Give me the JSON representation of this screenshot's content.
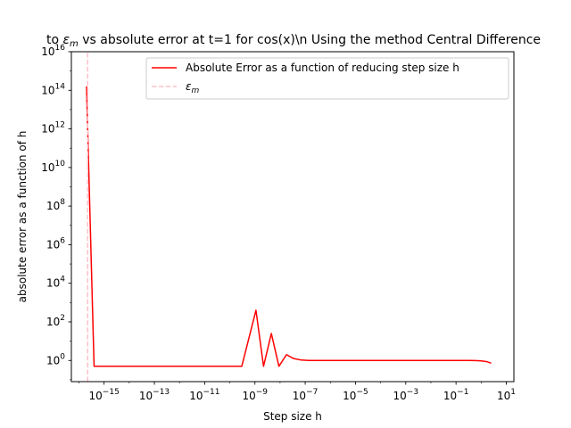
{
  "chart_data": {
    "type": "line",
    "title_prefix": "to ",
    "title_symbol": "ε",
    "title_symbol_sub": "m",
    "title_suffix": " vs absolute error at t=1 for cos(x)\\n Using the method Central Difference",
    "xlabel": "Step size h",
    "ylabel": "absolute error as a function of h",
    "xscale": "log",
    "yscale": "log",
    "xlim": [
      5e-17,
      20
    ],
    "ylim": [
      0.08,
      1e+16
    ],
    "grid": false,
    "legend_position": "top-right",
    "x_ticks": [
      {
        "value": 1e-15,
        "label": "10",
        "exp": "−15"
      },
      {
        "value": 1e-13,
        "label": "10",
        "exp": "−13"
      },
      {
        "value": 1e-11,
        "label": "10",
        "exp": "−11"
      },
      {
        "value": 1e-09,
        "label": "10",
        "exp": "−9"
      },
      {
        "value": 1e-07,
        "label": "10",
        "exp": "−7"
      },
      {
        "value": 1e-05,
        "label": "10",
        "exp": "−5"
      },
      {
        "value": 0.001,
        "label": "10",
        "exp": "−3"
      },
      {
        "value": 0.1,
        "label": "10",
        "exp": "−1"
      },
      {
        "value": 10,
        "label": "10",
        "exp": "1"
      }
    ],
    "y_ticks": [
      {
        "value": 1,
        "label": "10",
        "exp": "0"
      },
      {
        "value": 100.0,
        "label": "10",
        "exp": "2"
      },
      {
        "value": 10000.0,
        "label": "10",
        "exp": "4"
      },
      {
        "value": 1000000.0,
        "label": "10",
        "exp": "6"
      },
      {
        "value": 100000000.0,
        "label": "10",
        "exp": "8"
      },
      {
        "value": 10000000000.0,
        "label": "10",
        "exp": "10"
      },
      {
        "value": 1000000000000.0,
        "label": "10",
        "exp": "12"
      },
      {
        "value": 100000000000000.0,
        "label": "10",
        "exp": "14"
      },
      {
        "value": 1e+16,
        "label": "10",
        "exp": "16"
      }
    ],
    "series": [
      {
        "name": "Absolute Error as a function of reducing step size h",
        "color": "#ff0000",
        "style": "solid",
        "x": [
          2e-16,
          4e-16,
          1e-15,
          1e-14,
          1e-13,
          1e-12,
          1e-11,
          1e-10,
          3e-10,
          1.1e-09,
          2.2e-09,
          4.5e-09,
          9e-09,
          1.8e-08,
          3.5e-08,
          7e-08,
          1.4e-07,
          5e-07,
          1e-06,
          1e-05,
          0.0001,
          0.001,
          0.01,
          0.1,
          0.3,
          0.6,
          1.0,
          1.6,
          2.5
        ],
        "y": [
          160000000000000.0,
          0.5,
          0.5,
          0.5,
          0.5,
          0.5,
          0.5,
          0.5,
          0.5,
          400,
          0.5,
          25,
          0.5,
          2.0,
          1.25,
          1.05,
          1.0,
          1.0,
          1.0,
          1.0,
          1.0,
          1.0,
          1.0,
          1.0,
          1.0,
          0.99,
          0.95,
          0.88,
          0.72
        ]
      },
      {
        "name": "ε",
        "name_sub": "m",
        "color": "#ffc0cb",
        "style": "dashed",
        "x": [
          2.220446e-16,
          2.220446e-16
        ],
        "y": [
          0.08,
          1e+16
        ]
      }
    ]
  }
}
